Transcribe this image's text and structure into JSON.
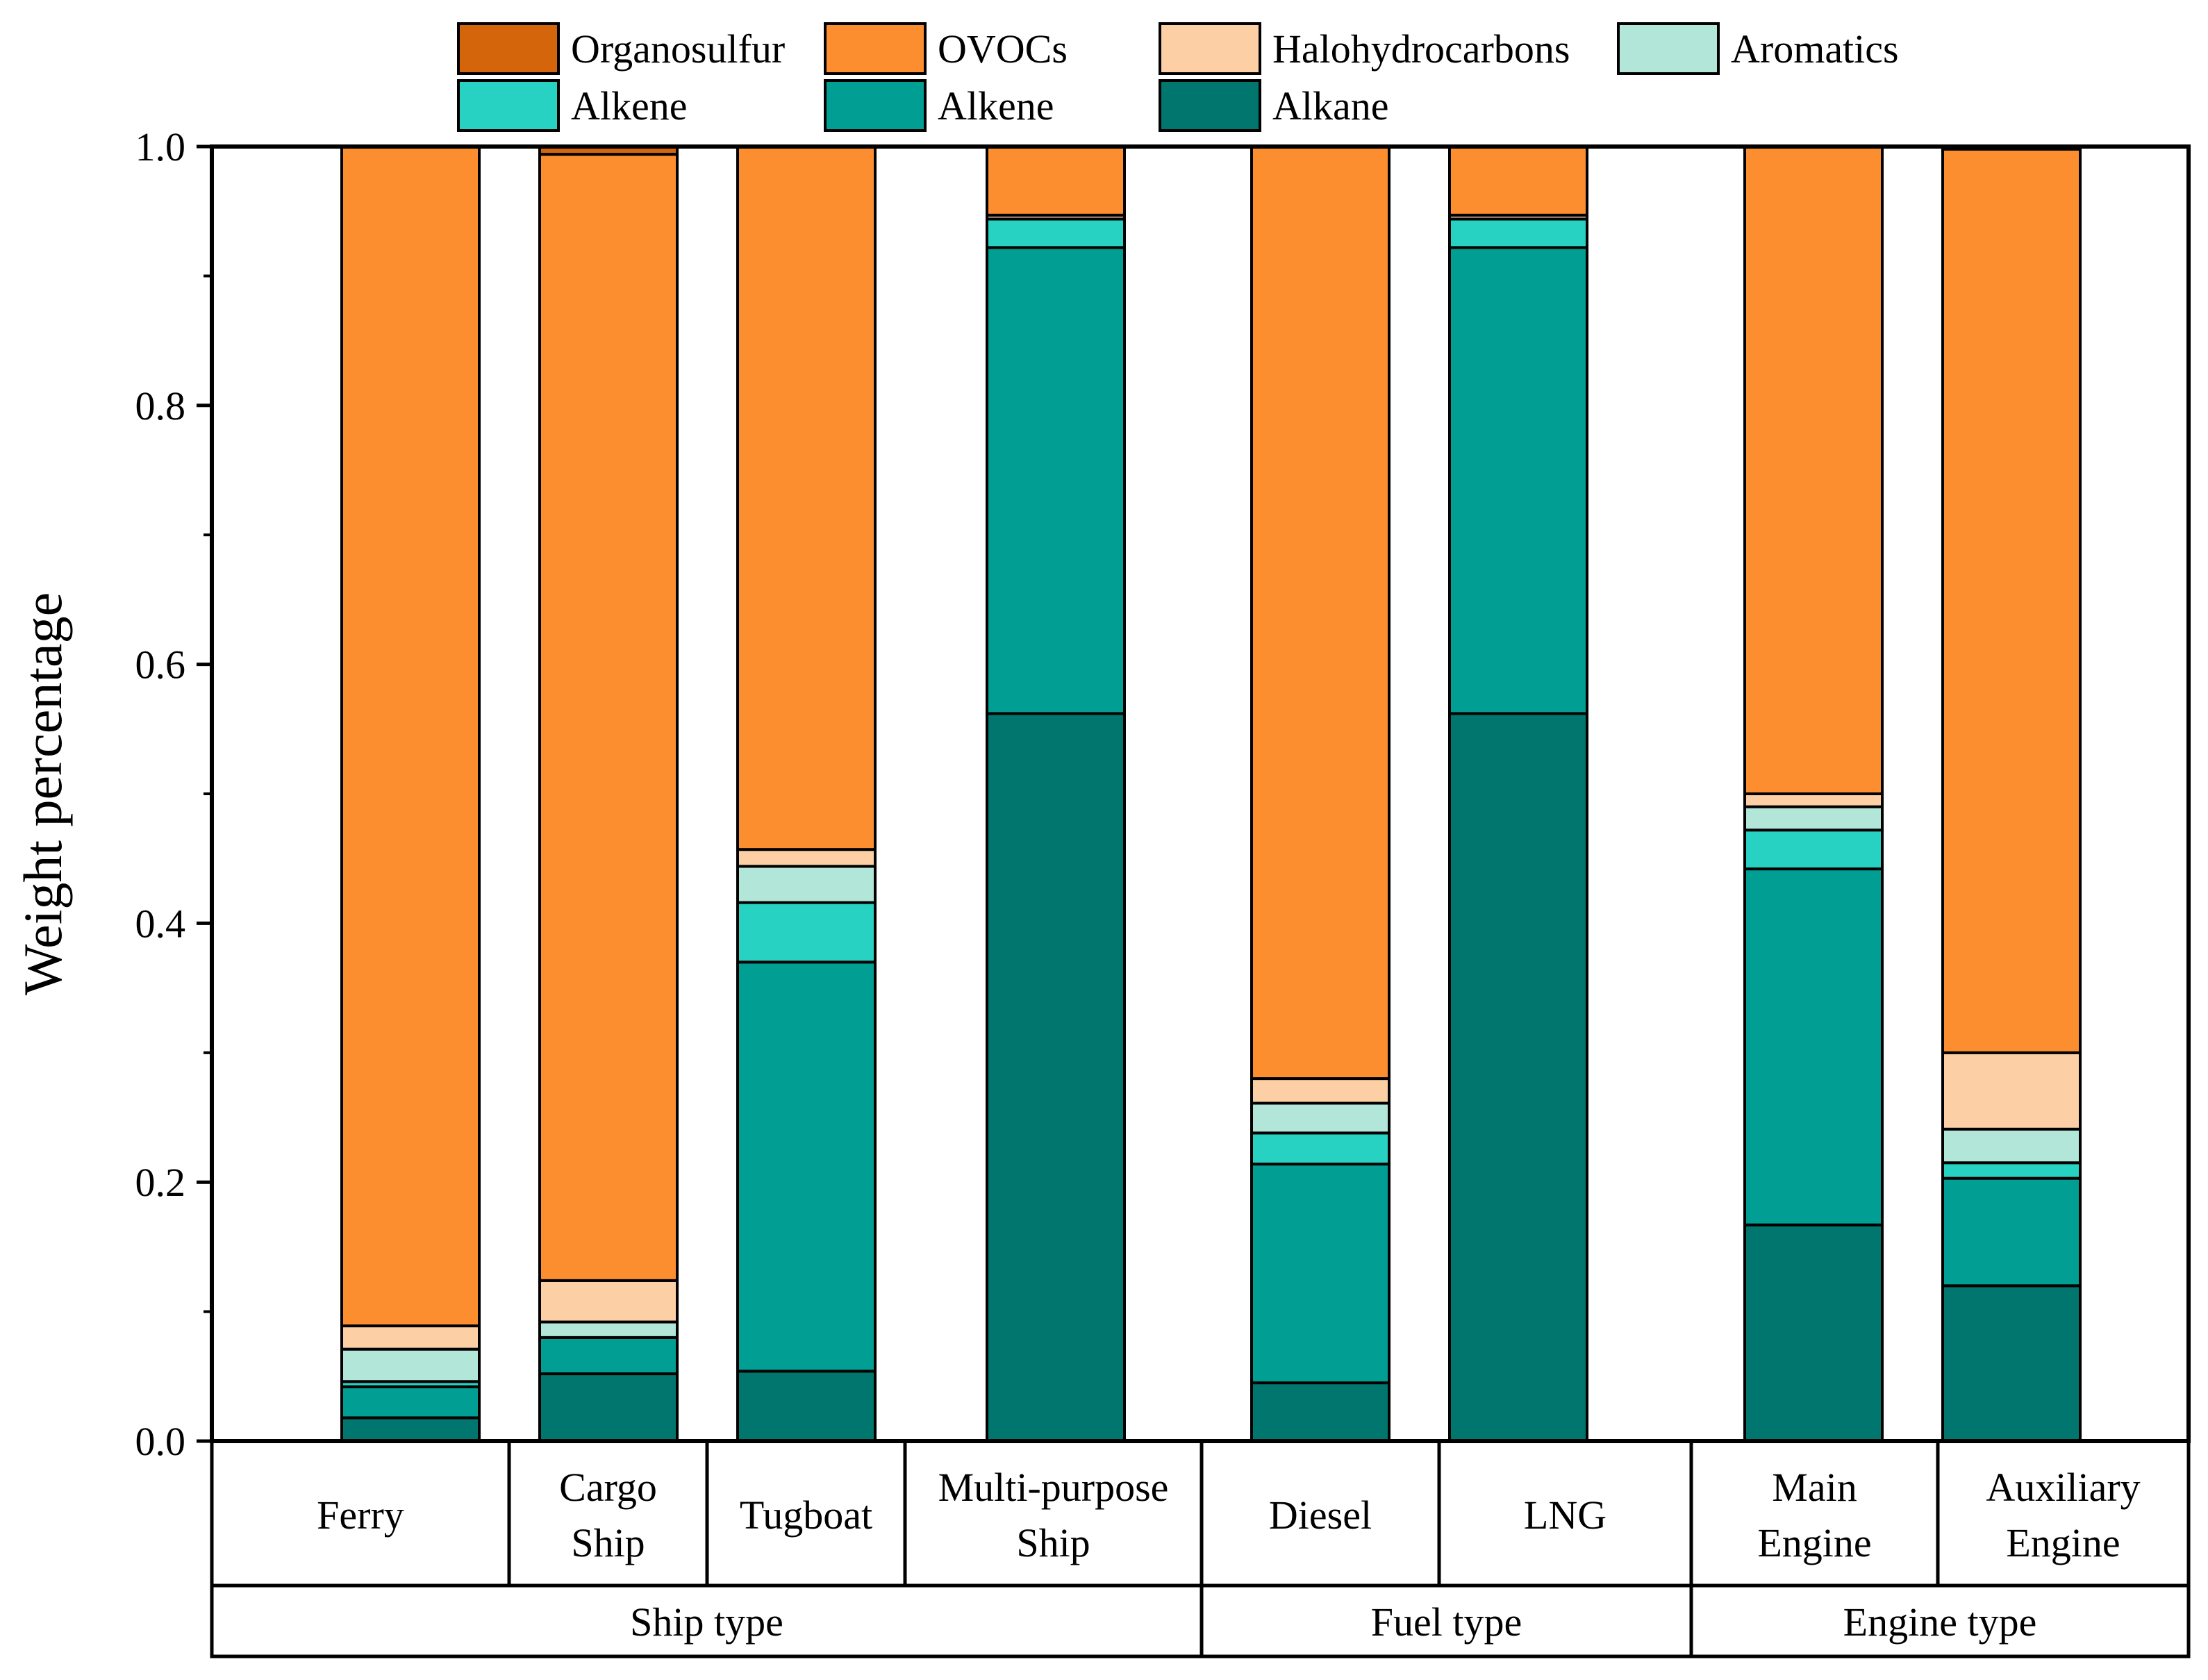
{
  "chart_data": {
    "type": "bar",
    "stacked": true,
    "title": "",
    "ylabel": "Weight percentage",
    "xlabel": "",
    "ylim": [
      0,
      1.0
    ],
    "yticks": [
      "0.0",
      "0.2",
      "0.4",
      "0.6",
      "0.8",
      "1.0"
    ],
    "grid": false,
    "legend_position": "top",
    "groups": [
      {
        "name": "Ship type",
        "categories": [
          "Ferry",
          "Cargo Ship",
          "Tugboat",
          "Multi-purpose Ship"
        ]
      },
      {
        "name": "Fuel type",
        "categories": [
          "Diesel",
          "LNG"
        ]
      },
      {
        "name": "Engine type",
        "categories": [
          "Main Engine",
          "Auxiliary Engine"
        ]
      }
    ],
    "categories": [
      {
        "line1": "Ferry",
        "line2": ""
      },
      {
        "line1": "Cargo",
        "line2": "Ship"
      },
      {
        "line1": "Tugboat",
        "line2": ""
      },
      {
        "line1": "Multi-purpose",
        "line2": "Ship"
      },
      {
        "line1": "Diesel",
        "line2": ""
      },
      {
        "line1": "LNG",
        "line2": ""
      },
      {
        "line1": "Main",
        "line2": "Engine"
      },
      {
        "line1": "Auxiliary",
        "line2": "Engine"
      }
    ],
    "series": [
      {
        "name": "Alkane",
        "color": "#00766E",
        "values": [
          0.018,
          0.052,
          0.054,
          0.562,
          0.045,
          0.562,
          0.167,
          0.12
        ]
      },
      {
        "name": "Alkene",
        "color": "#009E93",
        "values": [
          0.024,
          0.028,
          0.316,
          0.36,
          0.169,
          0.36,
          0.275,
          0.083
        ]
      },
      {
        "name": "Alkene",
        "color": "#27D2C3",
        "values": [
          0.004,
          0.0,
          0.046,
          0.022,
          0.024,
          0.022,
          0.03,
          0.012
        ]
      },
      {
        "name": "Aromatics",
        "color": "#B2E6D9",
        "values": [
          0.025,
          0.012,
          0.028,
          0.0,
          0.023,
          0.0,
          0.018,
          0.026
        ]
      },
      {
        "name": "Halohydrocarbons",
        "color": "#FCD0A4",
        "values": [
          0.018,
          0.032,
          0.013,
          0.003,
          0.019,
          0.003,
          0.01,
          0.059
        ]
      },
      {
        "name": "OVOCs",
        "color": "#FC8E30",
        "values": [
          0.911,
          0.87,
          0.543,
          0.053,
          0.72,
          0.053,
          0.5,
          0.698
        ]
      },
      {
        "name": "Organosulfur",
        "color": "#D4650A",
        "values": [
          0.0,
          0.006,
          0.0,
          0.0,
          0.0,
          0.0,
          0.0,
          0.002
        ]
      }
    ]
  },
  "legend": {
    "row1": [
      "Organosulfur",
      "OVOCs",
      "Halohydrocarbons",
      "Aromatics"
    ],
    "row2": [
      "Alkene",
      "Alkene",
      "Alkane"
    ]
  }
}
